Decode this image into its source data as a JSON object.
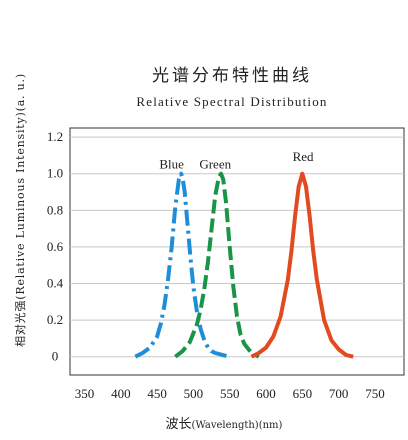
{
  "chart_data": {
    "type": "line",
    "title": "光谱分布特性曲线",
    "subtitle": "Relative Spectral Distribution",
    "xlabel_cn": "波长",
    "xlabel_en": "(Wavelength)",
    "xlabel_unit": "(nm)",
    "ylabel": "相对光强(Relative Luminous Intensity)(a. u.)",
    "xlim": [
      330,
      790
    ],
    "ylim": [
      -0.1,
      1.25
    ],
    "xticks": [
      350,
      400,
      450,
      500,
      550,
      600,
      650,
      700,
      750
    ],
    "yticks": [
      0,
      0.2,
      0.4,
      0.6,
      0.8,
      1.0,
      1.2
    ],
    "ytick_labels": [
      "0",
      "0.2",
      "0.4",
      "0.6",
      "0.8",
      "1.0",
      "1.2"
    ],
    "grid": "horizontal",
    "series": [
      {
        "name": "Blue",
        "color": "#1f8ed8",
        "style": "dash-dot",
        "x": [
          420,
          430,
          440,
          450,
          455,
          460,
          465,
          470,
          475,
          480,
          483,
          485,
          488,
          492,
          496,
          500,
          505,
          510,
          515,
          520,
          525,
          530,
          540,
          550
        ],
        "y": [
          0.0,
          0.02,
          0.05,
          0.11,
          0.18,
          0.28,
          0.42,
          0.6,
          0.82,
          0.97,
          1.0,
          0.98,
          0.9,
          0.72,
          0.54,
          0.38,
          0.24,
          0.15,
          0.09,
          0.05,
          0.03,
          0.02,
          0.01,
          0.0
        ]
      },
      {
        "name": "Green",
        "color": "#1a9447",
        "style": "dashed",
        "x": [
          475,
          485,
          495,
          505,
          510,
          515,
          520,
          525,
          530,
          535,
          538,
          541,
          545,
          550,
          555,
          560,
          565,
          570,
          580,
          590
        ],
        "y": [
          0.0,
          0.03,
          0.08,
          0.18,
          0.26,
          0.37,
          0.52,
          0.7,
          0.88,
          0.98,
          1.0,
          0.97,
          0.84,
          0.6,
          0.38,
          0.22,
          0.12,
          0.07,
          0.02,
          0.0
        ]
      },
      {
        "name": "Red",
        "color": "#e24a1f",
        "style": "solid",
        "x": [
          580,
          590,
          600,
          610,
          620,
          630,
          635,
          640,
          645,
          650,
          655,
          660,
          665,
          670,
          680,
          690,
          700,
          710,
          720
        ],
        "y": [
          0.0,
          0.02,
          0.05,
          0.11,
          0.22,
          0.42,
          0.58,
          0.77,
          0.93,
          1.0,
          0.93,
          0.77,
          0.58,
          0.42,
          0.2,
          0.09,
          0.04,
          0.01,
          0.0
        ]
      }
    ],
    "labels": [
      {
        "text": "Blue",
        "x": 470,
        "y": 1.03
      },
      {
        "text": "Green",
        "x": 530,
        "y": 1.03
      },
      {
        "text": "Red",
        "x": 651,
        "y": 1.07
      }
    ]
  }
}
